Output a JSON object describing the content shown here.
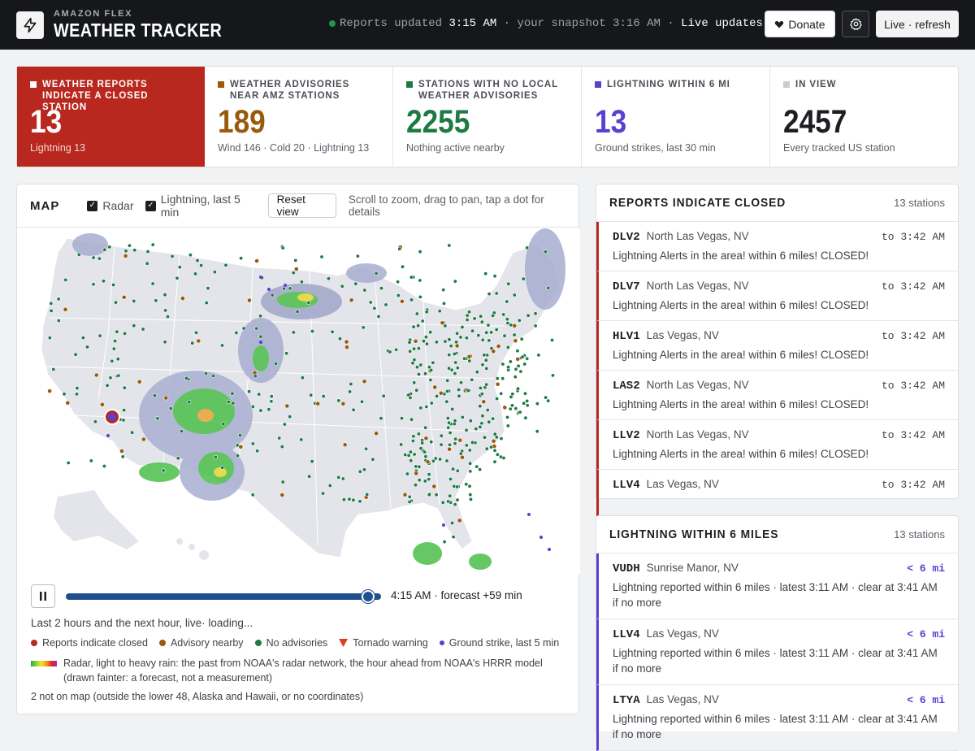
{
  "header": {
    "brand_sub": "AMAZON FLEX",
    "brand_main": "WEATHER TRACKER",
    "status_prefix": "Reports updated",
    "status_time": "3:15 AM",
    "status_mid": "· your snapshot 3:16 AM ·",
    "status_live": "Live updates",
    "donate_label": "Donate",
    "live_label": "Live · refresh",
    "icons": {
      "logo": "bolt-icon",
      "donate": "heart-icon",
      "settings": "gear-icon"
    }
  },
  "stats": [
    {
      "label": "WEATHER REPORTS INDICATE A CLOSED STATION",
      "value": "13",
      "sub": "Lightning 13",
      "color": "#ffffff"
    },
    {
      "label": "WEATHER ADVISORIES NEAR AMZ STATIONS",
      "value": "189",
      "sub": "Wind 146 · Cold 20 · Lightning 13",
      "color": "#9a5a0c"
    },
    {
      "label": "STATIONS WITH NO LOCAL WEATHER ADVISORIES",
      "value": "2255",
      "sub": "Nothing active nearby",
      "color": "#1e7a43"
    },
    {
      "label": "LIGHTNING WITHIN 6 MI",
      "value": "13",
      "sub": "Ground strikes, last 30 min",
      "color": "#5b3fd1"
    },
    {
      "label": "IN VIEW",
      "value": "2457",
      "sub": "Every tracked US station",
      "color": "#c9ccd1"
    }
  ],
  "map": {
    "title": "MAP",
    "radar_label": "Radar",
    "lightning_label": "Lightning, last 5 min",
    "reset_label": "Reset view",
    "hint": "Scroll to zoom, drag to pan, tap a dot for details",
    "slider_label": "4:15 AM · forecast +59 min",
    "slider_progress": 0.96,
    "caption": "Last 2 hours and the next hour, live· loading...",
    "legend": [
      {
        "label": "Reports indicate closed",
        "color": "#b8281f",
        "shape": "dot"
      },
      {
        "label": "Advisory nearby",
        "color": "#9a5a0c",
        "shape": "dot"
      },
      {
        "label": "No advisories",
        "color": "#1e7a43",
        "shape": "dot"
      },
      {
        "label": "Tornado warning",
        "color": "#d9401f",
        "shape": "triangle"
      },
      {
        "label": "Ground strike, last 5 min",
        "color": "#5b3fd1",
        "shape": "dot-small"
      }
    ],
    "radar_note": "Radar, light to heavy rain: the past from NOAA's radar network, the hour ahead from NOAA's HRRR model (drawn fainter: a forecast, not a measurement)",
    "not_on_map": "2 not on map (outside the lower 48, Alaska and Hawaii, or no coordinates)"
  },
  "closed_list": {
    "title": "REPORTS INDICATE CLOSED",
    "count": "13 stations",
    "items": [
      {
        "code": "DLV2",
        "city": "North Las Vegas, NV",
        "when": "to 3:42 AM",
        "msg": "Lightning Alerts in the area! within 6 miles! CLOSED!"
      },
      {
        "code": "DLV7",
        "city": "North Las Vegas, NV",
        "when": "to 3:42 AM",
        "msg": "Lightning Alerts in the area! within 6 miles! CLOSED!"
      },
      {
        "code": "HLV1",
        "city": "Las Vegas, NV",
        "when": "to 3:42 AM",
        "msg": "Lightning Alerts in the area! within 6 miles! CLOSED!"
      },
      {
        "code": "LAS2",
        "city": "North Las Vegas, NV",
        "when": "to 3:42 AM",
        "msg": "Lightning Alerts in the area! within 6 miles! CLOSED!"
      },
      {
        "code": "LLV2",
        "city": "North Las Vegas, NV",
        "when": "to 3:42 AM",
        "msg": "Lightning Alerts in the area! within 6 miles! CLOSED!"
      },
      {
        "code": "LLV4",
        "city": "Las Vegas, NV",
        "when": "to 3:42 AM",
        "msg": ""
      }
    ]
  },
  "lightning_list": {
    "title": "LIGHTNING WITHIN 6 MILES",
    "count": "13 stations",
    "items": [
      {
        "code": "VUDH",
        "city": "Sunrise Manor, NV",
        "when": "< 6 mi",
        "msg": "Lightning reported within 6 miles · latest 3:11 AM · clear at 3:41 AM if no more"
      },
      {
        "code": "LLV4",
        "city": "Las Vegas, NV",
        "when": "< 6 mi",
        "msg": "Lightning reported within 6 miles · latest 3:11 AM · clear at 3:41 AM if no more"
      },
      {
        "code": "LTYA",
        "city": "Las Vegas, NV",
        "when": "< 6 mi",
        "msg": "Lightning reported within 6 miles · latest 3:11 AM · clear at 3:41 AM if no more"
      }
    ]
  }
}
